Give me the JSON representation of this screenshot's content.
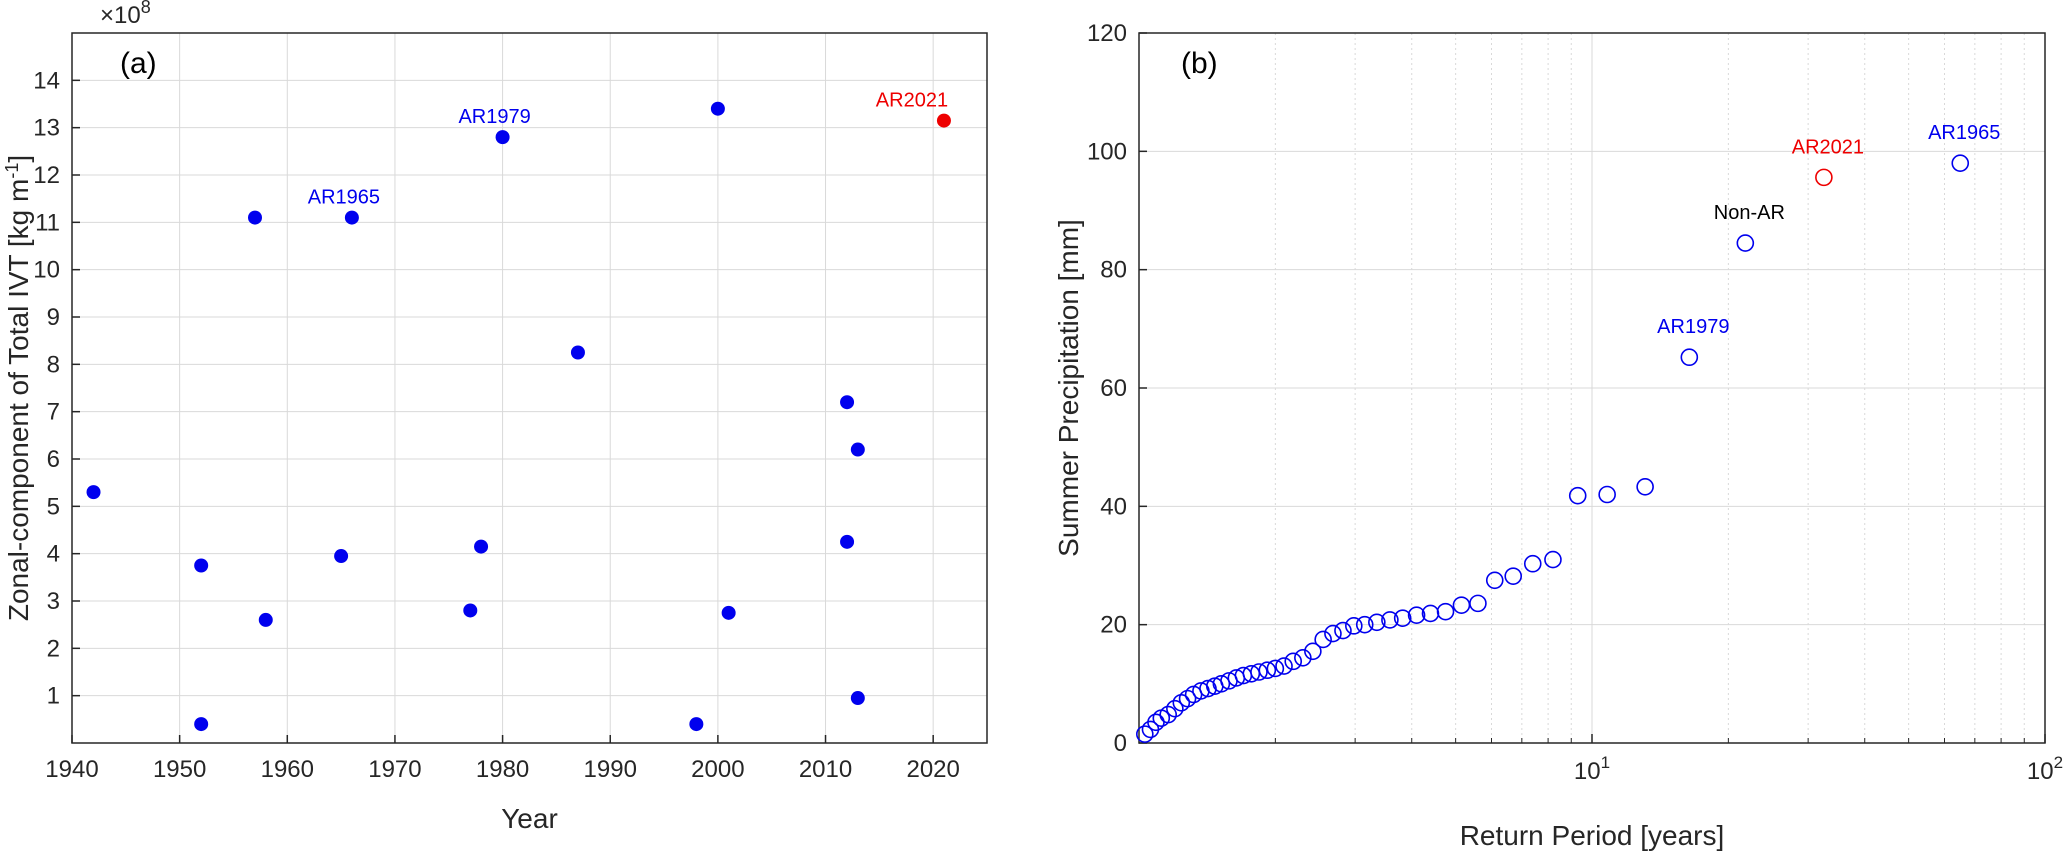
{
  "chart_data": [
    {
      "type": "scatter",
      "panel_label": "(a)",
      "xlabel": "Year",
      "ylabel": "Zonal-component of Total IVT [kg m",
      "ylabel_sup": "-1",
      "ylabel_end": "]",
      "y_exponent_label": "×10",
      "y_exponent_sup": "8",
      "xlim": [
        1940,
        2025
      ],
      "ylim": [
        0,
        15
      ],
      "xticks": [
        1940,
        1950,
        1960,
        1970,
        1980,
        1990,
        2000,
        2010,
        2020
      ],
      "yticks": [
        1,
        2,
        3,
        4,
        5,
        6,
        7,
        8,
        9,
        10,
        11,
        12,
        13,
        14
      ],
      "grid": true,
      "colors": {
        "default": "#0000ee",
        "highlight": "#ee0000"
      },
      "points": [
        {
          "x": 1942,
          "y": 5.3
        },
        {
          "x": 1952,
          "y": 3.75
        },
        {
          "x": 1952,
          "y": 0.4
        },
        {
          "x": 1957,
          "y": 11.1
        },
        {
          "x": 1958,
          "y": 2.6
        },
        {
          "x": 1965,
          "y": 3.95
        },
        {
          "x": 1966,
          "y": 11.1,
          "label": "AR1965"
        },
        {
          "x": 1977,
          "y": 2.8
        },
        {
          "x": 1978,
          "y": 4.15
        },
        {
          "x": 1980,
          "y": 12.8,
          "label": "AR1979"
        },
        {
          "x": 1987,
          "y": 8.25
        },
        {
          "x": 1998,
          "y": 0.4
        },
        {
          "x": 2000,
          "y": 13.4
        },
        {
          "x": 2001,
          "y": 2.75
        },
        {
          "x": 2012,
          "y": 7.2
        },
        {
          "x": 2012,
          "y": 4.25
        },
        {
          "x": 2013,
          "y": 6.2
        },
        {
          "x": 2013,
          "y": 0.95
        },
        {
          "x": 2021,
          "y": 13.15,
          "label": "AR2021",
          "highlight": true
        }
      ]
    },
    {
      "type": "scatter",
      "panel_label": "(b)",
      "xlabel": "Return Period [years]",
      "ylabel": "Summer Precipitation [mm]",
      "xscale": "log",
      "xlim": [
        1,
        100
      ],
      "ylim": [
        0,
        120
      ],
      "xticks": [
        {
          "base": "10",
          "exp": "1"
        },
        {
          "base": "10",
          "exp": "2"
        }
      ],
      "yticks": [
        0,
        20,
        40,
        60,
        80,
        100,
        120
      ],
      "grid": true,
      "marker": "open-circle",
      "colors": {
        "default": "#0000ee",
        "highlight": "#ee0000",
        "annotation_plain": "#000000"
      },
      "points": [
        {
          "x": 1.03,
          "y": 1.5
        },
        {
          "x": 1.06,
          "y": 2.3
        },
        {
          "x": 1.09,
          "y": 3.5
        },
        {
          "x": 1.12,
          "y": 4.2
        },
        {
          "x": 1.16,
          "y": 4.8
        },
        {
          "x": 1.2,
          "y": 5.8
        },
        {
          "x": 1.24,
          "y": 6.8
        },
        {
          "x": 1.28,
          "y": 7.5
        },
        {
          "x": 1.32,
          "y": 8.2
        },
        {
          "x": 1.37,
          "y": 8.8
        },
        {
          "x": 1.42,
          "y": 9.2
        },
        {
          "x": 1.47,
          "y": 9.6
        },
        {
          "x": 1.52,
          "y": 10.0
        },
        {
          "x": 1.58,
          "y": 10.5
        },
        {
          "x": 1.64,
          "y": 11.0
        },
        {
          "x": 1.7,
          "y": 11.4
        },
        {
          "x": 1.77,
          "y": 11.7
        },
        {
          "x": 1.84,
          "y": 12.0
        },
        {
          "x": 1.92,
          "y": 12.3
        },
        {
          "x": 2.0,
          "y": 12.6
        },
        {
          "x": 2.09,
          "y": 13.0
        },
        {
          "x": 2.19,
          "y": 13.8
        },
        {
          "x": 2.3,
          "y": 14.4
        },
        {
          "x": 2.42,
          "y": 15.5
        },
        {
          "x": 2.55,
          "y": 17.5
        },
        {
          "x": 2.68,
          "y": 18.5
        },
        {
          "x": 2.82,
          "y": 19.0
        },
        {
          "x": 2.98,
          "y": 19.8
        },
        {
          "x": 3.15,
          "y": 20.0
        },
        {
          "x": 3.35,
          "y": 20.4
        },
        {
          "x": 3.58,
          "y": 20.8
        },
        {
          "x": 3.82,
          "y": 21.1
        },
        {
          "x": 4.1,
          "y": 21.6
        },
        {
          "x": 4.4,
          "y": 21.9
        },
        {
          "x": 4.75,
          "y": 22.2
        },
        {
          "x": 5.15,
          "y": 23.3
        },
        {
          "x": 5.6,
          "y": 23.6
        },
        {
          "x": 6.1,
          "y": 27.5
        },
        {
          "x": 6.7,
          "y": 28.2
        },
        {
          "x": 7.4,
          "y": 30.3
        },
        {
          "x": 8.2,
          "y": 31.0
        },
        {
          "x": 9.3,
          "y": 41.8
        },
        {
          "x": 10.8,
          "y": 42.0
        },
        {
          "x": 13.1,
          "y": 43.3
        },
        {
          "x": 16.4,
          "y": 65.2,
          "label": "AR1979"
        },
        {
          "x": 21.8,
          "y": 84.5,
          "label": "Non-AR",
          "label_color": "plain"
        },
        {
          "x": 32.5,
          "y": 95.6,
          "label": "AR2021",
          "highlight": true
        },
        {
          "x": 65.0,
          "y": 98.0,
          "label": "AR1965"
        }
      ]
    }
  ]
}
